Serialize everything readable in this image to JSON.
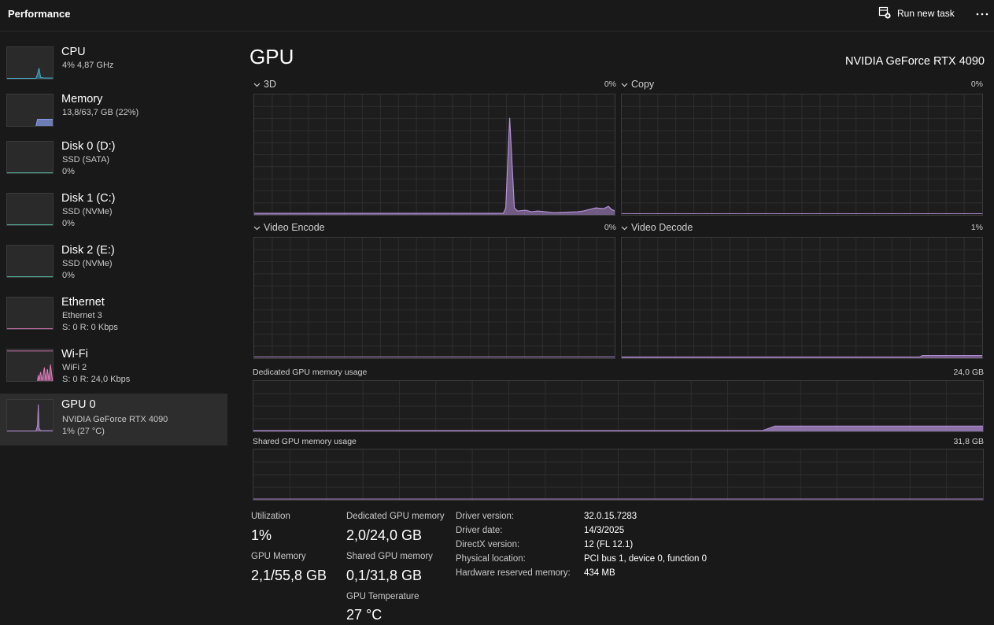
{
  "header": {
    "title": "Performance",
    "run_new_task": "Run new task"
  },
  "sidebar": {
    "items": [
      {
        "name": "CPU",
        "line1": "4%  4,87 GHz",
        "line2": "",
        "color": "#48b4d4"
      },
      {
        "name": "Memory",
        "line1": "13,8/63,7 GB (22%)",
        "line2": "",
        "color": "#8b9ff0"
      },
      {
        "name": "Disk 0 (D:)",
        "line1": "SSD (SATA)",
        "line2": "0%",
        "color": "#52b3a0"
      },
      {
        "name": "Disk 1 (C:)",
        "line1": "SSD (NVMe)",
        "line2": "0%",
        "color": "#52b3a0"
      },
      {
        "name": "Disk 2 (E:)",
        "line1": "SSD (NVMe)",
        "line2": "0%",
        "color": "#52b3a0"
      },
      {
        "name": "Ethernet",
        "line1": "Ethernet 3",
        "line2": "S: 0 R: 0 Kbps",
        "color": "#c86fa8"
      },
      {
        "name": "Wi-Fi",
        "line1": "WiFi 2",
        "line2": "S: 0 R: 24,0 Kbps",
        "color": "#e37fc0"
      },
      {
        "name": "GPU 0",
        "line1": "NVIDIA GeForce RTX 4090",
        "line2": "1%  (27 °C)",
        "color": "#b48fd6"
      }
    ]
  },
  "main": {
    "title": "GPU",
    "model": "NVIDIA GeForce RTX 4090",
    "graphs": [
      {
        "label": "3D",
        "pct": "0%"
      },
      {
        "label": "Copy",
        "pct": "0%"
      },
      {
        "label": "Video Encode",
        "pct": "0%"
      },
      {
        "label": "Video Decode",
        "pct": "1%"
      }
    ],
    "dedicated_memory": {
      "label": "Dedicated GPU memory usage",
      "max": "24,0 GB"
    },
    "shared_memory": {
      "label": "Shared GPU memory usage",
      "max": "31,8 GB"
    },
    "accent_color": "#b48fd6"
  },
  "stats": {
    "utilization_label": "Utilization",
    "utilization_value": "1%",
    "gpu_memory_label": "GPU Memory",
    "gpu_memory_value": "2,1/55,8 GB",
    "dedicated_label": "Dedicated GPU memory",
    "dedicated_value": "2,0/24,0 GB",
    "shared_label": "Shared GPU memory",
    "shared_value": "0,1/31,8 GB",
    "temp_label": "GPU Temperature",
    "temp_value": "27 °C"
  },
  "info": [
    {
      "key": "Driver version:",
      "value": "32.0.15.7283"
    },
    {
      "key": "Driver date:",
      "value": "14/3/2025"
    },
    {
      "key": "DirectX version:",
      "value": "12 (FL 12.1)"
    },
    {
      "key": "Physical location:",
      "value": "PCI bus 1, device 0, function 0"
    },
    {
      "key": "Hardware reserved memory:",
      "value": "434 MB"
    }
  ]
}
